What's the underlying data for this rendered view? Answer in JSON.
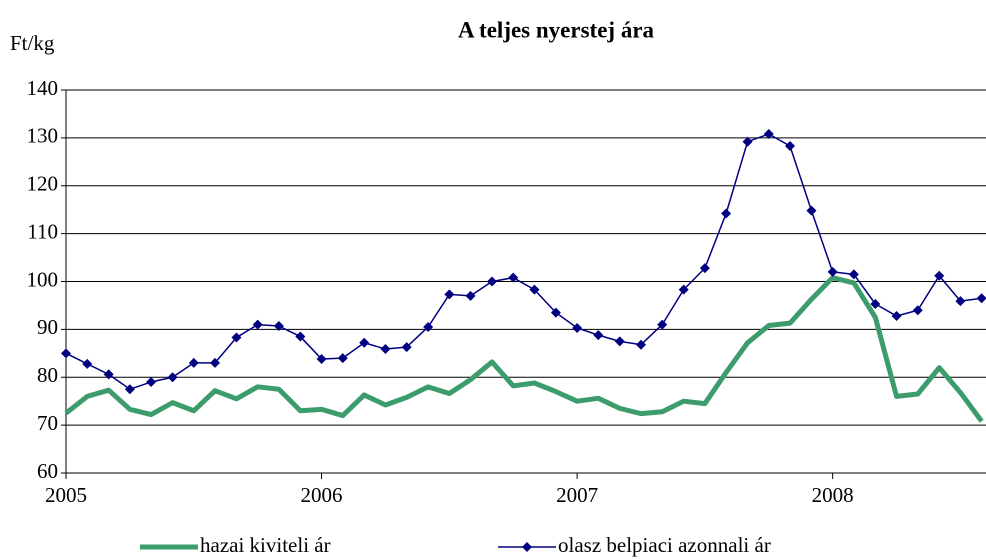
{
  "chart_data": {
    "type": "line",
    "title": "A teljes nyerstej ára",
    "y_label": "Ft/kg",
    "x": [
      2005.0,
      2005.083,
      2005.167,
      2005.25,
      2005.333,
      2005.417,
      2005.5,
      2005.583,
      2005.667,
      2005.75,
      2005.833,
      2005.917,
      2006.0,
      2006.083,
      2006.167,
      2006.25,
      2006.333,
      2006.417,
      2006.5,
      2006.583,
      2006.667,
      2006.75,
      2006.833,
      2006.917,
      2007.0,
      2007.083,
      2007.167,
      2007.25,
      2007.333,
      2007.417,
      2007.5,
      2007.583,
      2007.667,
      2007.75,
      2007.833,
      2007.917,
      2008.0,
      2008.083,
      2008.167,
      2008.25,
      2008.333,
      2008.417,
      2008.5,
      2008.583
    ],
    "series": [
      {
        "name": "hazai kiviteli ár",
        "color": "#3d9c6c",
        "marker": false,
        "values": [
          72.5,
          76,
          77.3,
          73.3,
          72.2,
          74.7,
          73,
          77.2,
          75.5,
          78,
          77.5,
          73,
          73.3,
          72,
          76.3,
          74.2,
          75.8,
          78,
          76.6,
          79.5,
          83.2,
          78.2,
          78.8,
          77,
          75,
          75.6,
          73.5,
          72.4,
          72.8,
          75,
          74.5,
          81,
          87.2,
          90.8,
          91.3,
          96.3,
          100.8,
          99.7,
          92.5,
          76,
          76.5,
          82,
          76.8,
          70.8
        ]
      },
      {
        "name": "olasz belpiaci azonnali ár",
        "color": "#000080",
        "marker": true,
        "values": [
          85,
          82.8,
          80.6,
          77.5,
          79,
          80,
          83,
          83,
          88.3,
          91,
          90.7,
          88.5,
          83.8,
          84,
          87.2,
          85.9,
          86.3,
          90.5,
          97.3,
          97,
          100,
          100.8,
          98.3,
          93.5,
          90.3,
          88.8,
          87.5,
          86.8,
          91,
          98.3,
          102.8,
          114.2,
          129.2,
          130.8,
          128.3,
          114.8,
          102,
          101.5,
          95.3,
          92.8,
          94,
          101.2,
          95.9,
          96.5
        ]
      }
    ],
    "xlim": [
      2005,
      2008.6
    ],
    "xticks": [
      2005,
      2006,
      2007,
      2008
    ],
    "ylim": [
      60,
      140
    ],
    "yticks": [
      60,
      70,
      80,
      90,
      100,
      110,
      120,
      130,
      140
    ],
    "grid": true
  }
}
